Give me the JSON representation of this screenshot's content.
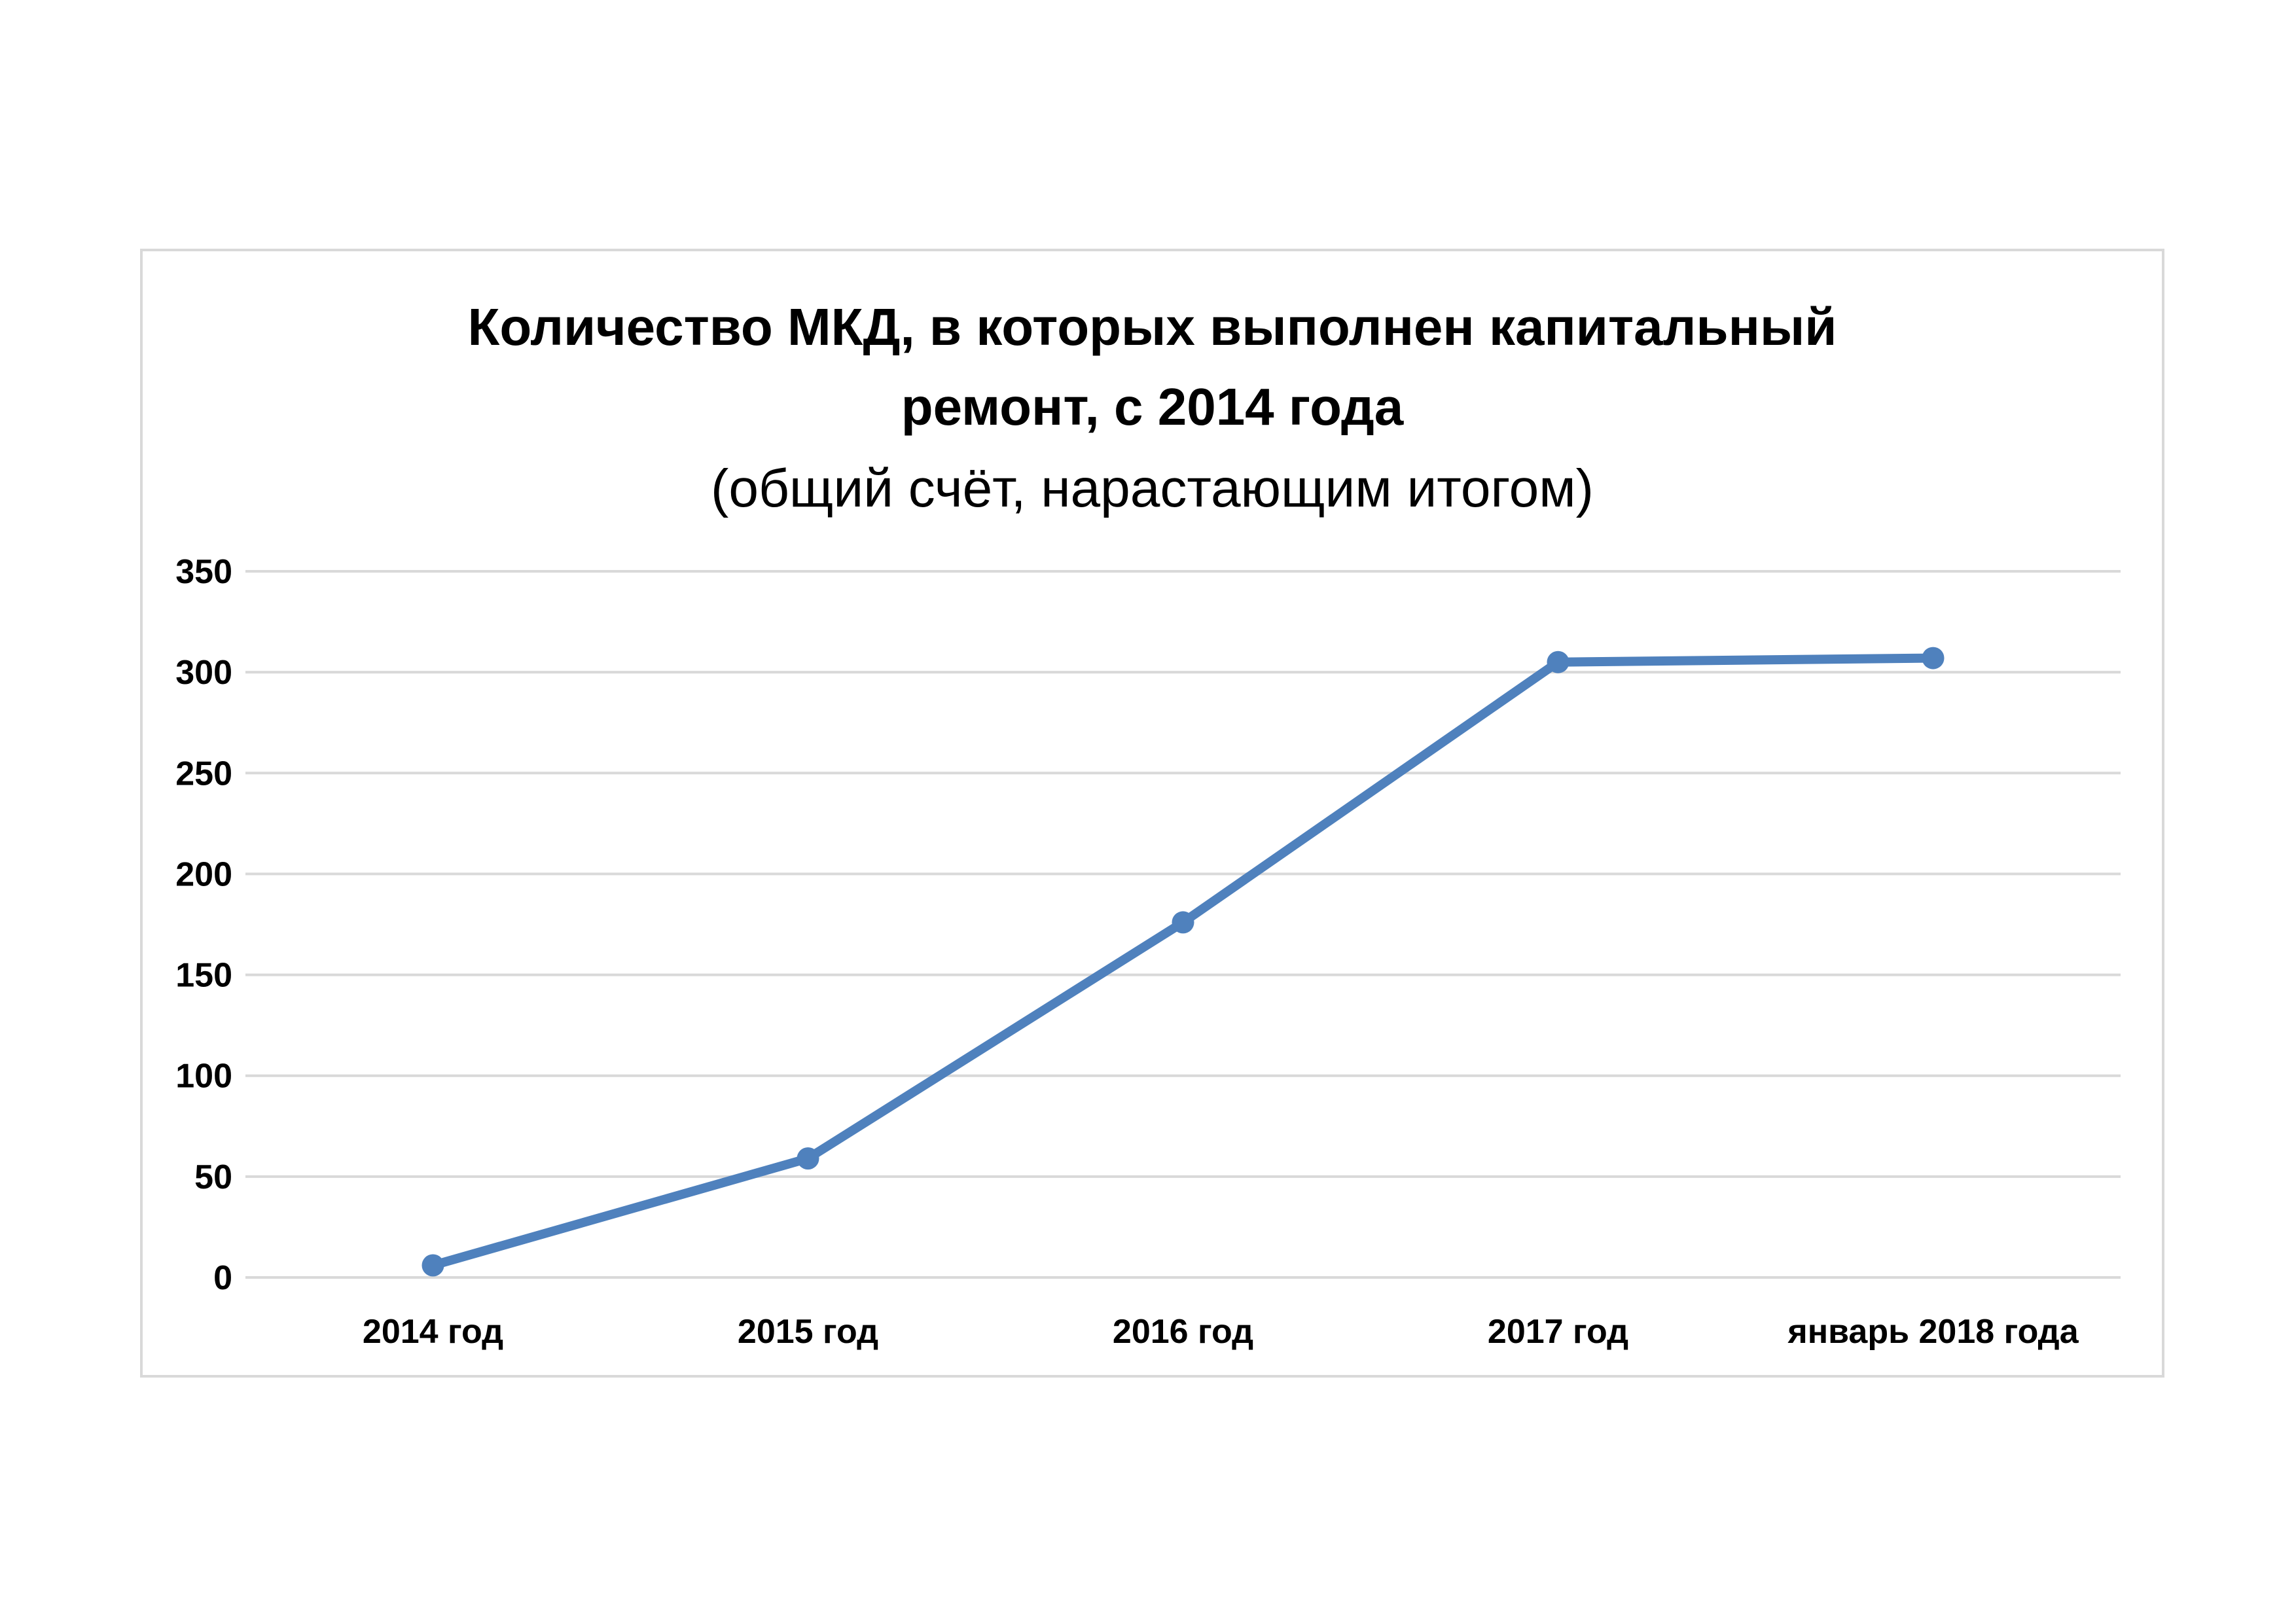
{
  "chart_data": {
    "type": "line",
    "title_lines": [
      "Количество МКД, в которых выполнен капитальный",
      "ремонт, с 2014 года"
    ],
    "subtitle": "(общий счёт, нарастающим итогом)",
    "categories": [
      "2014 год",
      "2015 год",
      "2016 год",
      "2017 год",
      "январь 2018 года"
    ],
    "series": [
      {
        "values": [
          6,
          59,
          176,
          305,
          307
        ],
        "color": "#4f81bd"
      }
    ],
    "y_ticks": [
      0,
      50,
      100,
      150,
      200,
      250,
      300,
      350
    ],
    "ylim": [
      0,
      350
    ],
    "grid": true,
    "legend": "none",
    "markers": true
  }
}
